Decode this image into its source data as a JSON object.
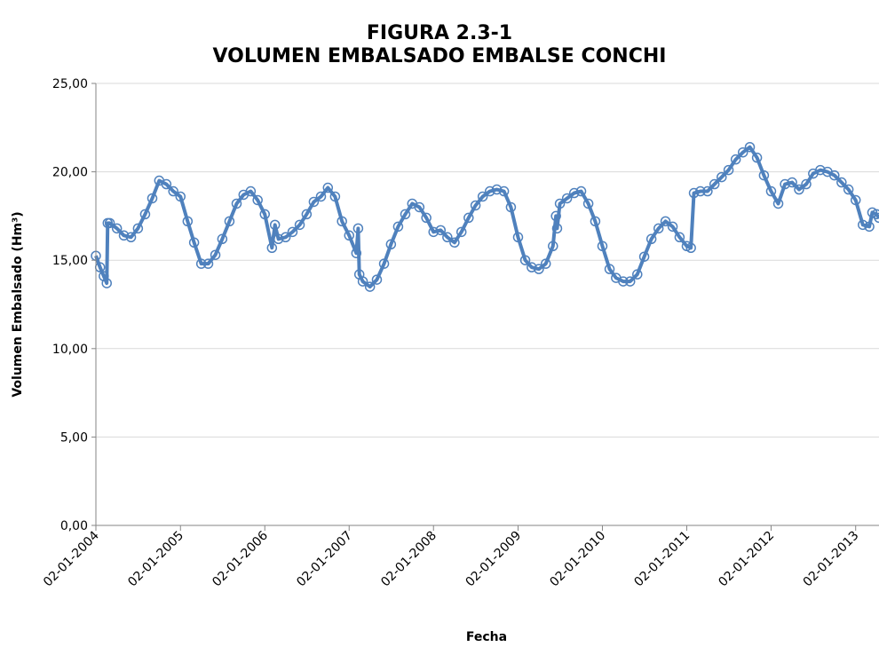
{
  "chart_data": {
    "type": "line",
    "title": "FIGURA 2.3-1",
    "subtitle": "VOLUMEN EMBALSADO EMBALSE CONCHI",
    "xlabel": "Fecha",
    "ylabel": "Volumen Embalsado  (Hm³)",
    "grid": true,
    "xlim": [
      "02-01-2004",
      "13-04-2013"
    ],
    "xticks": [
      "02-01-2004",
      "02-01-2005",
      "02-01-2006",
      "02-01-2007",
      "02-01-2008",
      "02-01-2009",
      "02-01-2010",
      "02-01-2011",
      "02-01-2012",
      "02-01-2013"
    ],
    "ylim": [
      0,
      25
    ],
    "yticks": [
      {
        "value": 0,
        "label": "0,00"
      },
      {
        "value": 5,
        "label": "5,00"
      },
      {
        "value": 10,
        "label": "10,00"
      },
      {
        "value": 15,
        "label": "15,00"
      },
      {
        "value": 20,
        "label": "20,00"
      },
      {
        "value": 25,
        "label": "25,00"
      }
    ],
    "x": [
      "02-01-2004",
      "20-01-2004",
      "05-02-2004",
      "18-02-2004",
      "22-02-2004",
      "02-03-2004",
      "02-04-2004",
      "02-05-2004",
      "02-06-2004",
      "02-07-2004",
      "02-08-2004",
      "02-09-2004",
      "02-10-2004",
      "02-11-2004",
      "02-12-2004",
      "02-01-2005",
      "02-02-2005",
      "02-03-2005",
      "02-04-2005",
      "02-05-2005",
      "02-06-2005",
      "02-07-2005",
      "02-08-2005",
      "02-09-2005",
      "02-10-2005",
      "02-11-2005",
      "02-12-2005",
      "02-01-2006",
      "02-02-2006",
      "15-02-2006",
      "02-03-2006",
      "02-04-2006",
      "02-05-2006",
      "02-06-2006",
      "02-07-2006",
      "02-08-2006",
      "02-09-2006",
      "02-10-2006",
      "02-11-2006",
      "02-12-2006",
      "02-01-2007",
      "02-02-2007",
      "10-02-2007",
      "15-02-2007",
      "02-03-2007",
      "02-04-2007",
      "02-05-2007",
      "02-06-2007",
      "02-07-2007",
      "02-08-2007",
      "02-09-2007",
      "02-10-2007",
      "02-11-2007",
      "02-12-2007",
      "02-01-2008",
      "02-02-2008",
      "02-03-2008",
      "02-04-2008",
      "02-05-2008",
      "02-06-2008",
      "02-07-2008",
      "02-08-2008",
      "02-09-2008",
      "02-10-2008",
      "02-11-2008",
      "02-12-2008",
      "02-01-2009",
      "02-02-2009",
      "02-03-2009",
      "02-04-2009",
      "02-05-2009",
      "02-06-2009",
      "15-06-2009",
      "20-06-2009",
      "02-07-2009",
      "02-08-2009",
      "02-09-2009",
      "02-10-2009",
      "02-11-2009",
      "02-12-2009",
      "02-01-2010",
      "02-02-2010",
      "02-03-2010",
      "02-04-2010",
      "02-05-2010",
      "02-06-2010",
      "02-07-2010",
      "02-08-2010",
      "02-09-2010",
      "02-10-2010",
      "02-11-2010",
      "02-12-2010",
      "02-01-2011",
      "20-01-2011",
      "02-02-2011",
      "02-03-2011",
      "02-04-2011",
      "02-05-2011",
      "02-06-2011",
      "02-07-2011",
      "02-08-2011",
      "02-09-2011",
      "02-10-2011",
      "02-11-2011",
      "02-12-2011",
      "02-01-2012",
      "02-02-2012",
      "02-03-2012",
      "02-04-2012",
      "02-05-2012",
      "02-06-2012",
      "02-07-2012",
      "02-08-2012",
      "02-09-2012",
      "02-10-2012",
      "02-11-2012",
      "02-12-2012",
      "02-01-2013",
      "02-02-2013",
      "02-03-2013",
      "15-03-2013",
      "02-04-2013",
      "13-04-2013"
    ],
    "series": [
      {
        "name": "Volumen Embalsado",
        "color": "#4f81bd",
        "values": [
          15.25,
          14.6,
          14.1,
          13.7,
          17.1,
          17.1,
          16.8,
          16.4,
          16.3,
          16.8,
          17.6,
          18.5,
          19.5,
          19.3,
          18.9,
          18.6,
          17.2,
          16.0,
          14.8,
          14.8,
          15.3,
          16.2,
          17.2,
          18.2,
          18.7,
          18.9,
          18.4,
          17.6,
          15.7,
          17.0,
          16.2,
          16.3,
          16.6,
          17.0,
          17.6,
          18.3,
          18.6,
          19.1,
          18.6,
          17.2,
          16.4,
          15.4,
          16.8,
          14.2,
          13.8,
          13.5,
          13.9,
          14.8,
          15.9,
          16.9,
          17.6,
          18.2,
          18.0,
          17.4,
          16.6,
          16.7,
          16.3,
          16.0,
          16.6,
          17.4,
          18.1,
          18.6,
          18.9,
          19.0,
          18.9,
          18.0,
          16.3,
          15.0,
          14.6,
          14.5,
          14.8,
          15.8,
          17.5,
          16.8,
          18.2,
          18.5,
          18.8,
          18.9,
          18.2,
          17.2,
          15.8,
          14.5,
          14.0,
          13.8,
          13.8,
          14.2,
          15.2,
          16.2,
          16.8,
          17.2,
          16.9,
          16.3,
          15.8,
          15.7,
          18.8,
          18.9,
          18.9,
          19.3,
          19.7,
          20.1,
          20.7,
          21.1,
          21.4,
          20.8,
          19.8,
          18.9,
          18.2,
          19.3,
          19.4,
          19.0,
          19.3,
          19.9,
          20.1,
          20.0,
          19.8,
          19.4,
          19.0,
          18.4,
          17.0,
          16.9,
          17.7,
          17.6,
          17.4
        ]
      }
    ]
  }
}
